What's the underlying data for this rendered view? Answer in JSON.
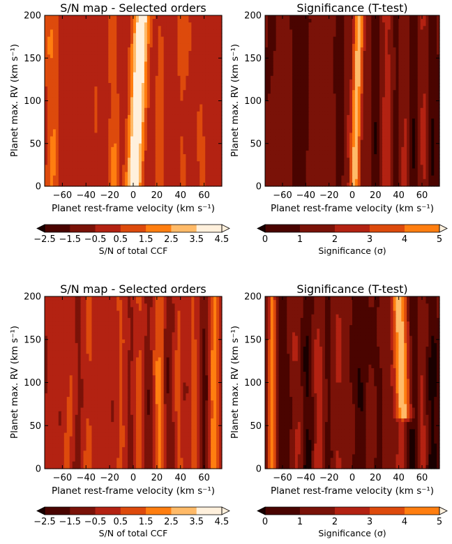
{
  "colormap": [
    "#1a0000",
    "#4a0400",
    "#7a1208",
    "#b32212",
    "#dd4a0c",
    "#ff7e10",
    "#ffba68",
    "#fff0dc"
  ],
  "chart_data": [
    {
      "type": "heatmap",
      "variant": "sn",
      "title": "S/N map - Selected orders",
      "xlabel": "Planet rest-frame velocity (km s⁻¹)",
      "ylabel": "Planet max. RV (km s⁻¹)",
      "xlim": [
        -75,
        75
      ],
      "ylim": [
        0,
        200
      ],
      "xticks": [
        -60,
        -40,
        -20,
        0,
        20,
        40,
        60
      ],
      "yticks": [
        0,
        50,
        100,
        150,
        200
      ],
      "colorbar": {
        "label": "S/N of total CCF",
        "ticks": [
          "−2.5",
          "−1.5",
          "−0.5",
          "0.5",
          "1.5",
          "2.5",
          "3.5",
          "4.5"
        ],
        "levels": [
          -2.5,
          -1.5,
          -0.5,
          0.5,
          1.5,
          2.5,
          3.5,
          4.5
        ],
        "extend": "both"
      },
      "features": [
        {
          "kind": "peak",
          "x0": 0,
          "x1": 8,
          "y0": 0,
          "y1": 200,
          "amplitude": 4.5,
          "width": 7,
          "note": "planet signal column"
        }
      ]
    },
    {
      "type": "heatmap",
      "variant": "sig",
      "title": "Significance (T-test)",
      "xlabel": "Planet rest-frame velocity (km s⁻¹)",
      "ylabel": "Planet max. RV (km s⁻¹)",
      "xlim": [
        -75,
        75
      ],
      "ylim": [
        0,
        200
      ],
      "xticks": [
        -60,
        -40,
        -20,
        0,
        20,
        40,
        60
      ],
      "yticks": [
        0,
        50,
        100,
        150,
        200
      ],
      "colorbar": {
        "label": "Significance (σ)",
        "ticks": [
          "0",
          "1",
          "2",
          "3",
          "4",
          "5"
        ],
        "levels": [
          0,
          1,
          2,
          3,
          4,
          5
        ],
        "extend": "both"
      },
      "features": [
        {
          "kind": "peak",
          "x0": 2,
          "x1": 6,
          "y0": 0,
          "y1": 200,
          "amplitude": 5.2,
          "width": 5
        }
      ]
    },
    {
      "type": "heatmap",
      "variant": "sn",
      "title": "S/N map - Selected orders",
      "xlabel": "Planet rest-frame velocity (km s⁻¹)",
      "ylabel": "Planet max. RV (km s⁻¹)",
      "xlim": [
        -75,
        75
      ],
      "ylim": [
        0,
        200
      ],
      "xticks": [
        -60,
        -40,
        -20,
        0,
        20,
        40,
        60
      ],
      "yticks": [
        0,
        50,
        100,
        150,
        200
      ],
      "colorbar": {
        "label": "S/N of total CCF",
        "ticks": [
          "−2.5",
          "−1.5",
          "−0.5",
          "0.5",
          "1.5",
          "2.5",
          "3.5",
          "4.5"
        ],
        "levels": [
          -2.5,
          -1.5,
          -0.5,
          0.5,
          1.5,
          2.5,
          3.5,
          4.5
        ],
        "extend": "both"
      },
      "features": []
    },
    {
      "type": "heatmap",
      "variant": "sig",
      "title": "Significance (T-test)",
      "xlabel": "Planet rest-frame velocity (km s⁻¹)",
      "ylabel": "Planet max. RV (km s⁻¹)",
      "xlim": [
        -75,
        75
      ],
      "ylim": [
        0,
        200
      ],
      "xticks": [
        -60,
        -40,
        -20,
        0,
        20,
        40,
        60
      ],
      "yticks": [
        0,
        50,
        100,
        150,
        200
      ],
      "colorbar": {
        "label": "Significance (σ)",
        "ticks": [
          "0",
          "1",
          "2",
          "3",
          "4",
          "5"
        ],
        "levels": [
          0,
          1,
          2,
          3,
          4,
          5
        ],
        "extend": "both"
      },
      "features": [
        {
          "kind": "peak",
          "x0": 44,
          "x1": 40,
          "y0": 60,
          "y1": 200,
          "amplitude": 5.0,
          "width": 7
        },
        {
          "kind": "peak",
          "x0": -69,
          "x1": -69,
          "y0": 0,
          "y1": 200,
          "amplitude": 3.6,
          "width": 4
        }
      ]
    }
  ]
}
